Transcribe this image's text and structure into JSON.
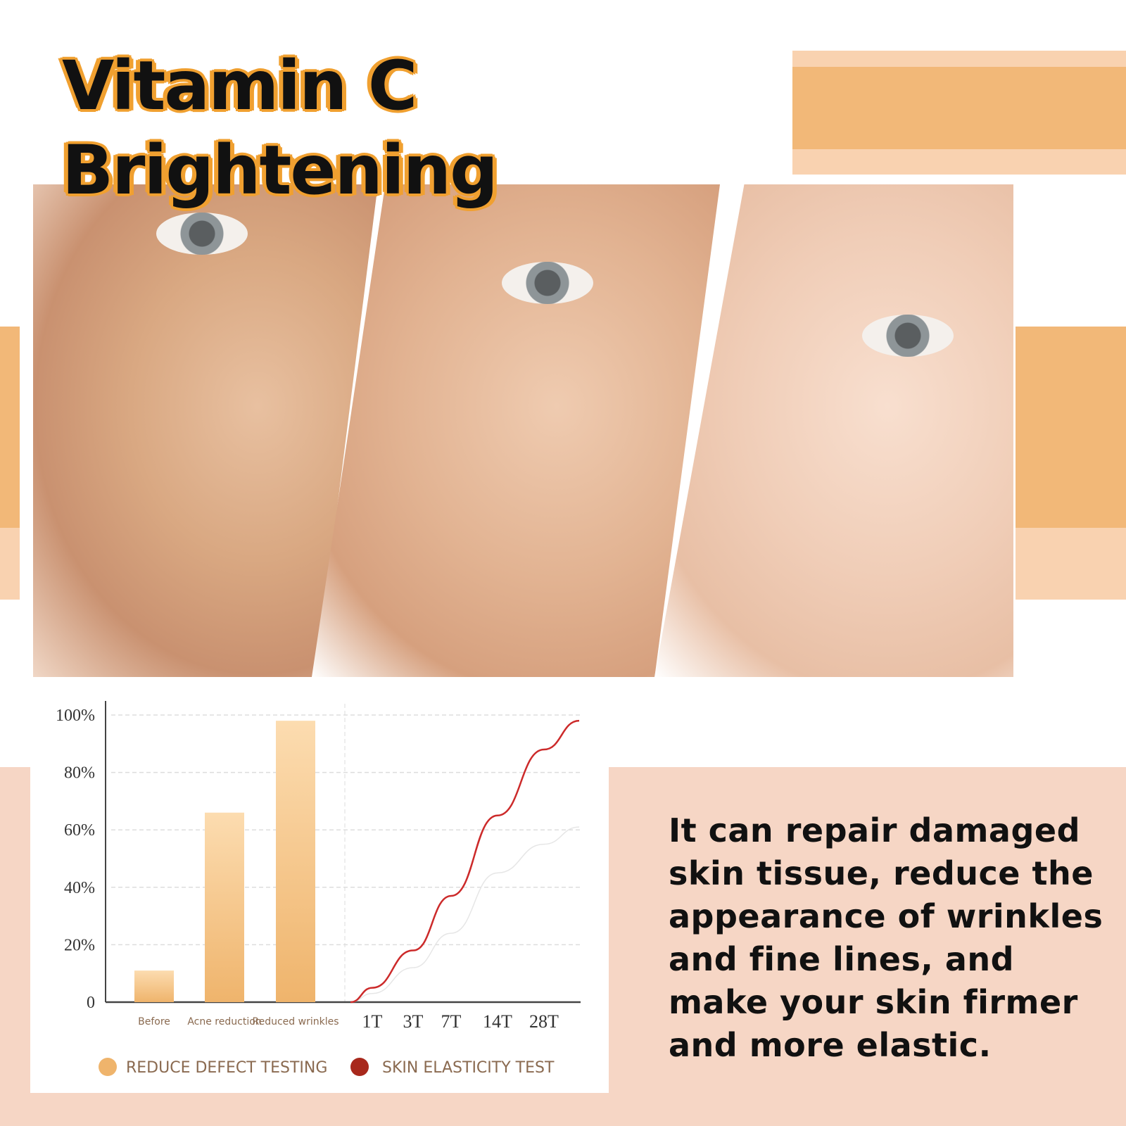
{
  "title": {
    "line1": "Vitamin C",
    "line2": "Brightening"
  },
  "description": "It can repair damaged skin tissue, reduce the appearance of wrinkles and fine lines, and make your skin firmer and more elastic.",
  "colors": {
    "accent_orange": "#f2b878",
    "light_orange": "#f9d2b0",
    "pink_bg": "#f6d6c5",
    "bar": "#efb46c",
    "line_red": "#cc2a2a",
    "title_outline": "#f0a030"
  },
  "photos": [
    {
      "label": "aged-skin"
    },
    {
      "label": "mid-treatment-skin"
    },
    {
      "label": "smooth-skin"
    }
  ],
  "chart_data": {
    "type": "bar+line",
    "yticks": [
      "0",
      "20%",
      "40%",
      "60%",
      "80%",
      "100%"
    ],
    "ylim": [
      0,
      100
    ],
    "grid": true,
    "bar_categories": [
      "Before",
      "Acne reduction",
      "Reduced wrinkles"
    ],
    "bar_values": [
      11,
      66,
      98
    ],
    "line_x": [
      "1T",
      "3T",
      "7T",
      "14T",
      "28T"
    ],
    "series": [
      {
        "name": "REDUCE DEFECT TESTING",
        "color": "#efb46c",
        "kind": "bar"
      },
      {
        "name": "SKIN ELASTICITY TEST",
        "color": "#cc2a2a",
        "kind": "line",
        "values": [
          5,
          18,
          37,
          65,
          88
        ],
        "end_value": 98
      },
      {
        "color": "#e6e6e6",
        "kind": "line",
        "values": [
          3,
          12,
          24,
          45,
          55
        ],
        "end_value": 61
      }
    ],
    "legend_position": "bottom"
  }
}
